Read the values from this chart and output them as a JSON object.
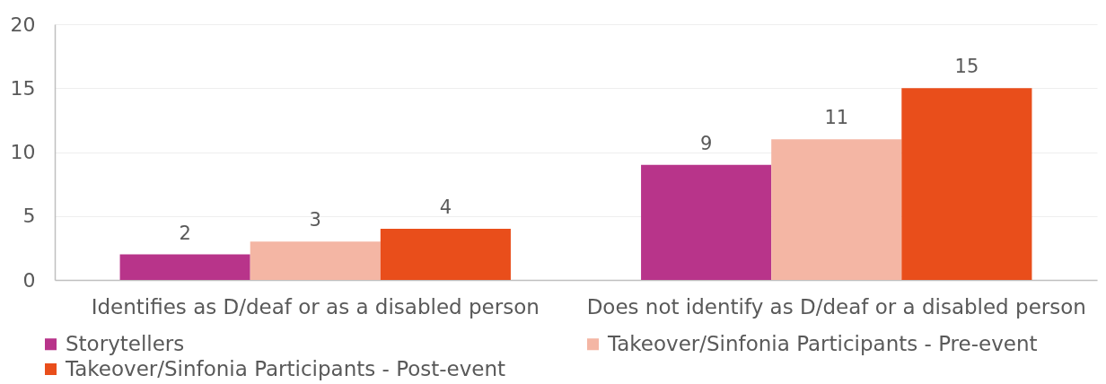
{
  "chart_data": {
    "type": "bar",
    "categories": [
      "Identifies as D/deaf or as a disabled person",
      "Does not identify as D/deaf or a disabled person"
    ],
    "series": [
      {
        "name": "Storytellers",
        "color": "#b8348a",
        "values": [
          2,
          9
        ]
      },
      {
        "name": "Takeover/Sinfonia Participants - Pre-event",
        "color": "#f4b6a4",
        "values": [
          3,
          11
        ]
      },
      {
        "name": "Takeover/Sinfonia Participants - Post-event",
        "color": "#e94e1b",
        "values": [
          4,
          15
        ]
      }
    ],
    "ylim": [
      0,
      20
    ],
    "yticks": [
      0,
      5,
      10,
      15,
      20
    ],
    "grid": "y",
    "legend": "bottom",
    "data_labels": true
  }
}
